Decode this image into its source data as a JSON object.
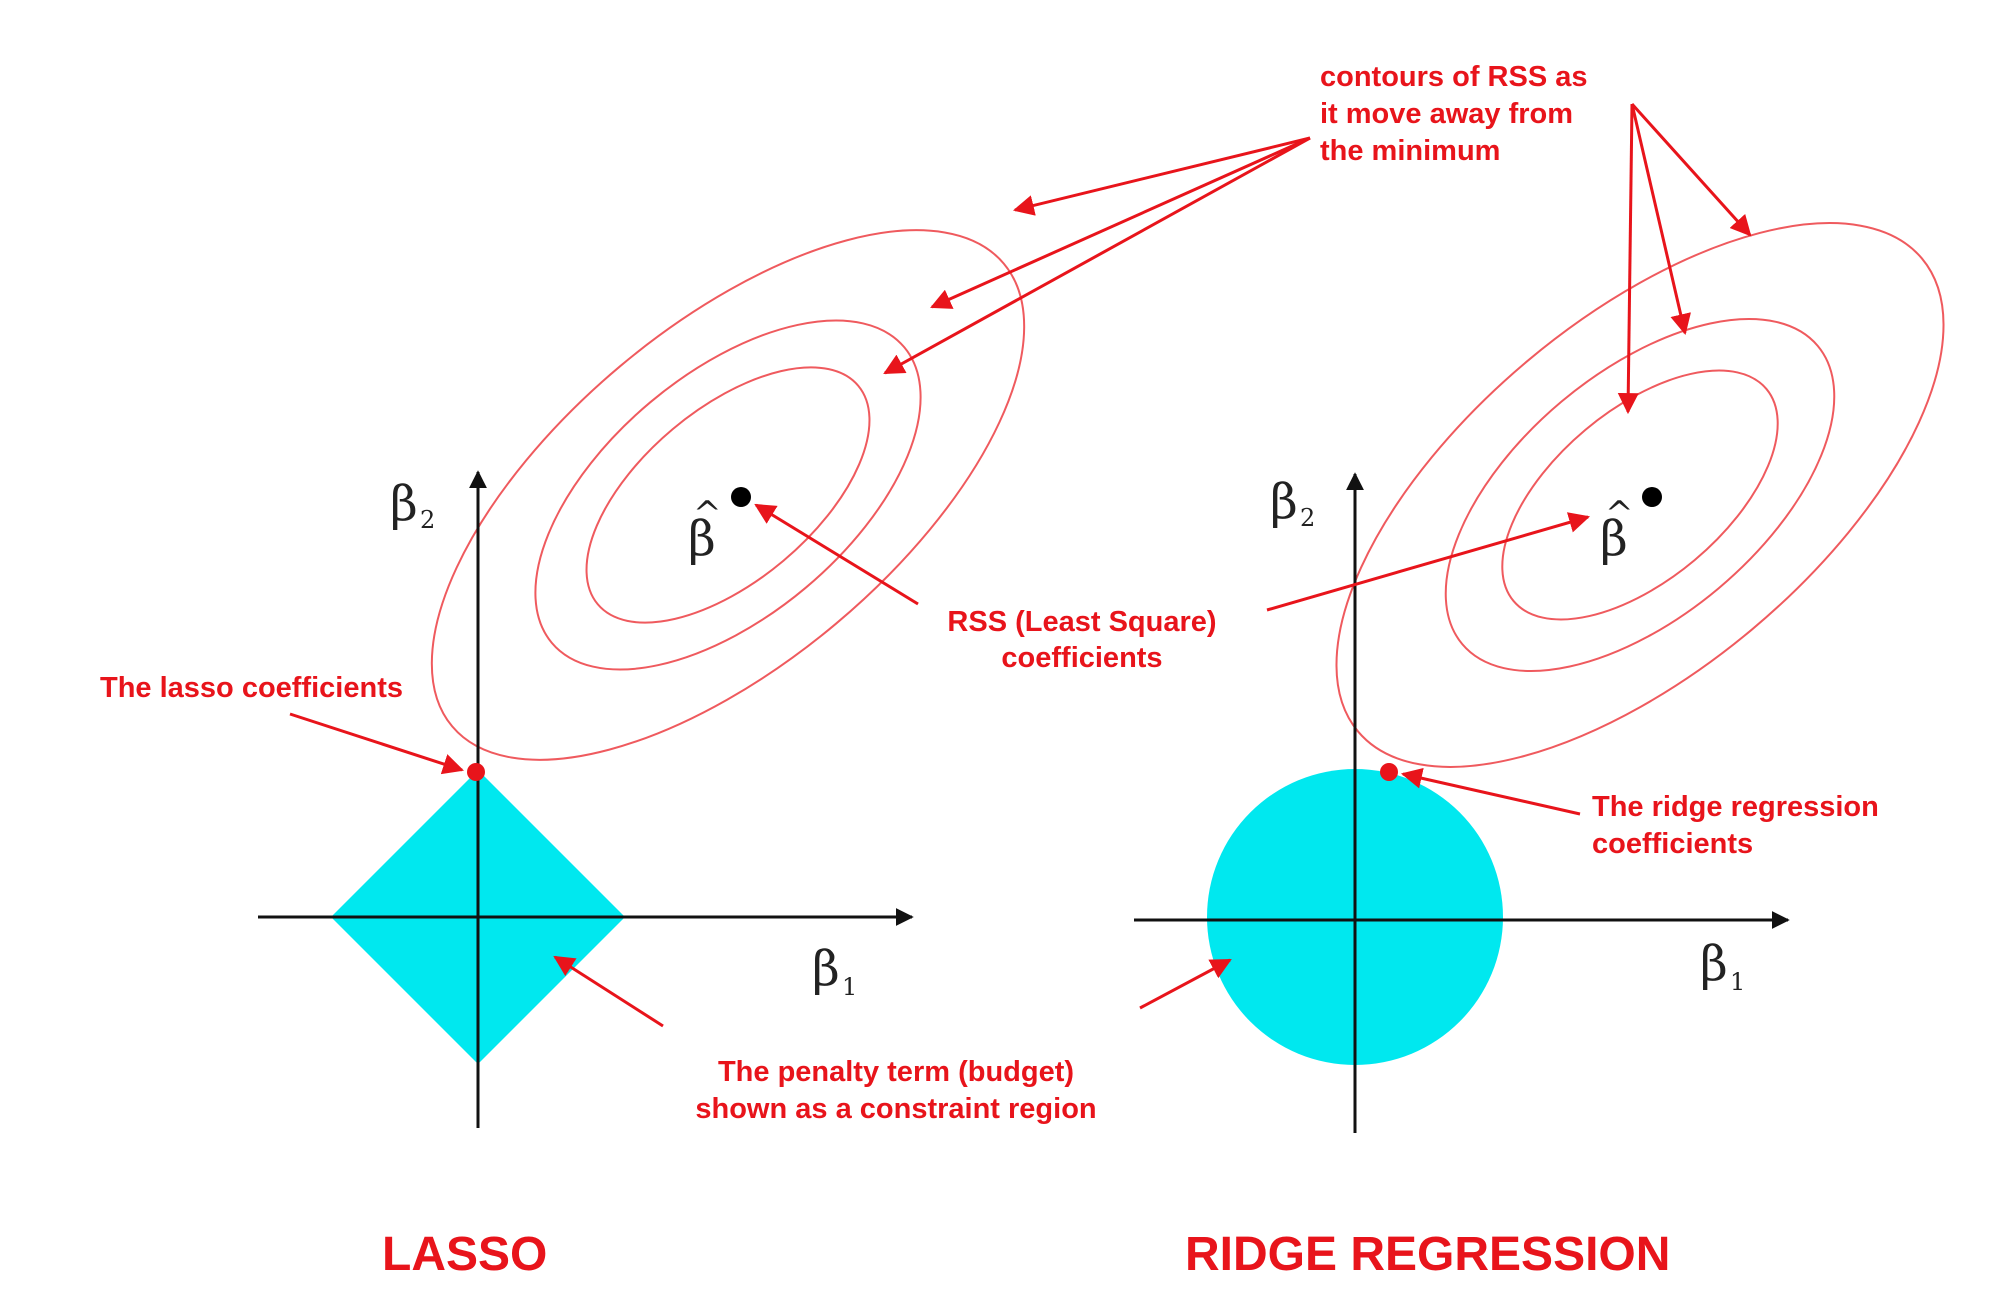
{
  "colors": {
    "annotation": "#e8141b",
    "contour": "#ef5a5e",
    "constraint_region": "#00e8ef",
    "axes": "#111111",
    "estimate_point": "#000000",
    "solution_point": "#e8141b"
  },
  "annotations": {
    "contours": [
      "contours of RSS as",
      "it move away from",
      "the minimum"
    ],
    "rss": [
      "RSS (Least Square)",
      "coefficients"
    ],
    "lasso_coef": [
      "The lasso coefficients"
    ],
    "ridge_coef": [
      "The ridge regression",
      "coefficients"
    ],
    "penalty": [
      "The penalty term (budget)",
      "shown as a constraint region"
    ]
  },
  "panels": {
    "lasso": {
      "title": "LASSO",
      "constraint_shape": "diamond",
      "axis_x": "β",
      "axis_x_sub": "1",
      "axis_y": "β",
      "axis_y_sub": "2",
      "estimate_label": "β",
      "estimate_hat": "^"
    },
    "ridge": {
      "title": "RIDGE REGRESSION",
      "constraint_shape": "circle",
      "axis_x": "β",
      "axis_x_sub": "1",
      "axis_y": "β",
      "axis_y_sub": "2",
      "estimate_label": "β",
      "estimate_hat": "^"
    }
  }
}
